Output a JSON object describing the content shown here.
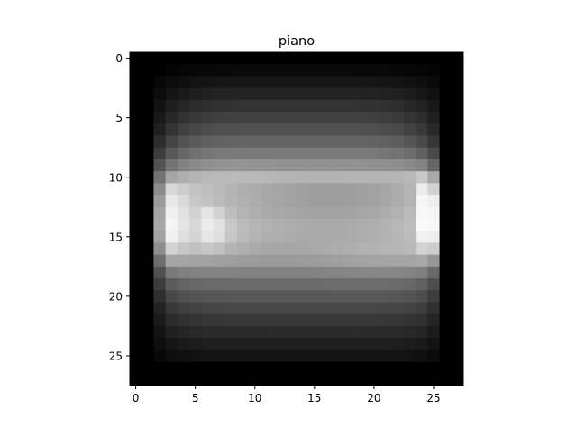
{
  "chart_data": {
    "type": "heatmap",
    "title": "piano",
    "colormap": "gray",
    "rows": 28,
    "cols": 28,
    "x_ticks": [
      0,
      5,
      10,
      15,
      20,
      25
    ],
    "y_ticks": [
      0,
      5,
      10,
      15,
      20,
      25
    ],
    "x_range": [
      -0.5,
      27.5
    ],
    "y_range": [
      -0.5,
      27.5
    ],
    "y_inverted": true,
    "value_range": [
      0,
      255
    ],
    "values": [
      [
        0,
        0,
        0,
        0,
        0,
        0,
        0,
        0,
        0,
        0,
        0,
        0,
        0,
        0,
        0,
        0,
        0,
        0,
        0,
        0,
        0,
        0,
        0,
        0,
        0,
        0,
        0,
        0
      ],
      [
        0,
        0,
        0,
        4,
        6,
        7,
        8,
        9,
        9,
        9,
        9,
        9,
        9,
        9,
        9,
        9,
        9,
        9,
        9,
        9,
        9,
        9,
        8,
        7,
        6,
        4,
        0,
        0
      ],
      [
        0,
        0,
        7,
        12,
        15,
        18,
        20,
        21,
        22,
        22,
        22,
        22,
        22,
        22,
        22,
        22,
        22,
        22,
        22,
        21,
        21,
        20,
        19,
        17,
        14,
        10,
        0,
        0
      ],
      [
        0,
        0,
        12,
        20,
        26,
        30,
        33,
        35,
        36,
        36,
        36,
        36,
        36,
        36,
        36,
        36,
        36,
        36,
        36,
        35,
        35,
        33,
        31,
        28,
        23,
        16,
        0,
        0
      ],
      [
        0,
        0,
        18,
        30,
        38,
        43,
        47,
        49,
        50,
        51,
        51,
        51,
        51,
        51,
        51,
        51,
        51,
        51,
        51,
        50,
        50,
        48,
        45,
        40,
        34,
        24,
        0,
        0
      ],
      [
        0,
        0,
        25,
        40,
        50,
        56,
        60,
        63,
        64,
        65,
        65,
        65,
        65,
        65,
        65,
        65,
        65,
        65,
        65,
        64,
        63,
        61,
        58,
        52,
        45,
        32,
        0,
        0
      ],
      [
        0,
        0,
        33,
        52,
        64,
        71,
        76,
        79,
        80,
        81,
        81,
        81,
        81,
        81,
        81,
        81,
        81,
        81,
        81,
        80,
        79,
        77,
        73,
        66,
        57,
        41,
        0,
        0
      ],
      [
        0,
        0,
        45,
        68,
        82,
        90,
        95,
        98,
        99,
        100,
        100,
        100,
        100,
        100,
        100,
        100,
        100,
        100,
        100,
        99,
        98,
        96,
        92,
        85,
        74,
        55,
        0,
        0
      ],
      [
        0,
        0,
        60,
        88,
        103,
        112,
        117,
        120,
        121,
        121,
        122,
        122,
        122,
        122,
        122,
        122,
        122,
        122,
        122,
        121,
        120,
        118,
        114,
        108,
        97,
        74,
        0,
        0
      ],
      [
        0,
        0,
        82,
        115,
        130,
        138,
        143,
        146,
        147,
        147,
        147,
        147,
        146,
        145,
        145,
        145,
        145,
        145,
        145,
        145,
        144,
        143,
        141,
        138,
        130,
        100,
        0,
        0
      ],
      [
        0,
        0,
        115,
        165,
        175,
        180,
        184,
        185,
        186,
        185,
        184,
        183,
        181,
        180,
        179,
        179,
        179,
        179,
        180,
        180,
        180,
        180,
        181,
        185,
        200,
        168,
        0,
        0
      ],
      [
        0,
        0,
        140,
        215,
        205,
        195,
        190,
        185,
        180,
        175,
        172,
        168,
        165,
        162,
        160,
        158,
        158,
        158,
        158,
        160,
        162,
        166,
        172,
        180,
        236,
        210,
        0,
        0
      ],
      [
        0,
        0,
        155,
        232,
        218,
        200,
        195,
        188,
        181,
        176,
        172,
        168,
        165,
        162,
        160,
        158,
        157,
        157,
        158,
        160,
        163,
        167,
        173,
        180,
        245,
        238,
        0,
        0
      ],
      [
        0,
        0,
        165,
        240,
        225,
        210,
        228,
        210,
        190,
        180,
        175,
        171,
        168,
        166,
        164,
        163,
        162,
        162,
        163,
        165,
        168,
        172,
        178,
        186,
        248,
        245,
        0,
        0
      ],
      [
        0,
        0,
        168,
        245,
        228,
        215,
        236,
        225,
        200,
        188,
        182,
        178,
        175,
        173,
        171,
        170,
        170,
        170,
        171,
        173,
        175,
        178,
        183,
        190,
        250,
        248,
        0,
        0
      ],
      [
        0,
        0,
        162,
        240,
        222,
        212,
        230,
        222,
        198,
        186,
        180,
        176,
        174,
        172,
        170,
        170,
        170,
        170,
        171,
        173,
        175,
        178,
        182,
        188,
        240,
        238,
        0,
        0
      ],
      [
        0,
        0,
        142,
        210,
        198,
        192,
        198,
        192,
        180,
        175,
        170,
        167,
        166,
        166,
        167,
        169,
        171,
        173,
        175,
        177,
        178,
        180,
        182,
        185,
        210,
        205,
        0,
        0
      ],
      [
        0,
        0,
        110,
        165,
        165,
        163,
        162,
        160,
        158,
        156,
        155,
        154,
        154,
        154,
        155,
        156,
        158,
        160,
        162,
        163,
        164,
        165,
        165,
        165,
        168,
        150,
        0,
        0
      ],
      [
        0,
        0,
        80,
        122,
        128,
        130,
        131,
        131,
        131,
        130,
        130,
        130,
        130,
        130,
        130,
        131,
        132,
        133,
        134,
        135,
        135,
        135,
        134,
        132,
        126,
        105,
        0,
        0
      ],
      [
        0,
        0,
        60,
        92,
        100,
        104,
        106,
        107,
        107,
        107,
        107,
        107,
        107,
        107,
        107,
        107,
        108,
        108,
        109,
        109,
        109,
        108,
        107,
        104,
        97,
        78,
        0,
        0
      ],
      [
        0,
        0,
        46,
        72,
        80,
        84,
        86,
        87,
        88,
        88,
        88,
        88,
        88,
        88,
        88,
        88,
        88,
        89,
        89,
        89,
        89,
        88,
        87,
        84,
        78,
        61,
        0,
        0
      ],
      [
        0,
        0,
        35,
        56,
        63,
        67,
        69,
        70,
        71,
        71,
        71,
        71,
        71,
        71,
        71,
        71,
        71,
        71,
        71,
        71,
        71,
        70,
        69,
        67,
        62,
        48,
        0,
        0
      ],
      [
        0,
        0,
        26,
        43,
        49,
        52,
        54,
        55,
        56,
        56,
        56,
        56,
        56,
        56,
        56,
        56,
        56,
        56,
        56,
        56,
        56,
        55,
        54,
        52,
        48,
        37,
        0,
        0
      ],
      [
        0,
        0,
        19,
        32,
        37,
        40,
        42,
        43,
        43,
        43,
        43,
        43,
        43,
        43,
        43,
        43,
        43,
        43,
        43,
        43,
        43,
        43,
        42,
        40,
        36,
        28,
        0,
        0
      ],
      [
        0,
        0,
        13,
        22,
        26,
        28,
        30,
        31,
        31,
        31,
        31,
        31,
        31,
        31,
        31,
        31,
        31,
        31,
        31,
        31,
        31,
        31,
        30,
        28,
        25,
        19,
        0,
        0
      ],
      [
        0,
        0,
        8,
        14,
        16,
        18,
        19,
        20,
        20,
        20,
        20,
        20,
        20,
        20,
        20,
        20,
        20,
        20,
        20,
        20,
        20,
        20,
        19,
        18,
        16,
        12,
        0,
        0
      ],
      [
        0,
        0,
        0,
        0,
        0,
        0,
        0,
        0,
        0,
        0,
        0,
        0,
        0,
        0,
        0,
        0,
        0,
        0,
        0,
        0,
        0,
        0,
        0,
        0,
        0,
        0,
        0,
        0
      ],
      [
        0,
        0,
        0,
        0,
        0,
        0,
        0,
        0,
        0,
        0,
        0,
        0,
        0,
        0,
        0,
        0,
        0,
        0,
        0,
        0,
        0,
        0,
        0,
        0,
        0,
        0,
        0,
        0
      ]
    ]
  }
}
